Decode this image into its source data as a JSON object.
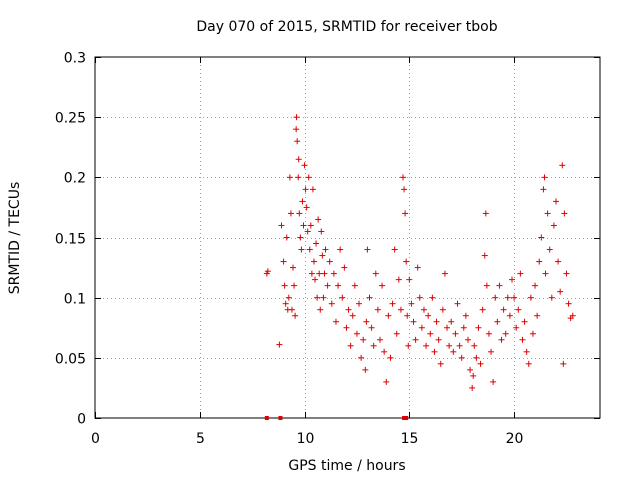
{
  "chart_data": {
    "type": "scatter",
    "title": "Day 070 of 2015, SRMTID for receiver tbob",
    "xlabel": "GPS time / hours",
    "ylabel": "SRMTID / TECUs",
    "xlim": [
      0,
      24.1
    ],
    "ylim": [
      0,
      0.3
    ],
    "x_ticks": [
      0,
      5,
      10,
      15,
      20
    ],
    "x_tick_labels": [
      "0",
      "5",
      "10",
      "15",
      "20"
    ],
    "y_ticks": [
      0,
      0.05,
      0.1,
      0.15,
      0.2,
      0.25,
      0.3
    ],
    "y_tick_labels": [
      "0",
      "0.05",
      "0.1",
      "0.15",
      "0.2",
      "0.25",
      "0.3"
    ],
    "grid": true,
    "marker": "+",
    "color": "#e00000",
    "series": [
      {
        "name": "SRMTID",
        "points": [
          [
            8.2,
            0.0
          ],
          [
            8.85,
            0.0
          ],
          [
            14.75,
            0.0
          ],
          [
            14.85,
            0.0
          ],
          [
            8.2,
            0.12
          ],
          [
            8.25,
            0.122
          ],
          [
            8.8,
            0.061
          ],
          [
            8.9,
            0.16
          ],
          [
            9.0,
            0.13
          ],
          [
            9.05,
            0.11
          ],
          [
            9.1,
            0.095
          ],
          [
            9.15,
            0.15
          ],
          [
            9.2,
            0.09
          ],
          [
            9.25,
            0.1
          ],
          [
            9.3,
            0.2
          ],
          [
            9.35,
            0.17
          ],
          [
            9.4,
            0.09
          ],
          [
            9.45,
            0.125
          ],
          [
            9.5,
            0.11
          ],
          [
            9.55,
            0.085
          ],
          [
            9.6,
            0.24
          ],
          [
            9.62,
            0.25
          ],
          [
            9.65,
            0.23
          ],
          [
            9.7,
            0.2
          ],
          [
            9.72,
            0.215
          ],
          [
            9.75,
            0.17
          ],
          [
            9.8,
            0.15
          ],
          [
            9.85,
            0.14
          ],
          [
            9.9,
            0.18
          ],
          [
            9.95,
            0.16
          ],
          [
            10.0,
            0.21
          ],
          [
            10.05,
            0.19
          ],
          [
            10.1,
            0.175
          ],
          [
            10.15,
            0.155
          ],
          [
            10.2,
            0.2
          ],
          [
            10.25,
            0.14
          ],
          [
            10.3,
            0.16
          ],
          [
            10.35,
            0.12
          ],
          [
            10.4,
            0.19
          ],
          [
            10.45,
            0.13
          ],
          [
            10.5,
            0.115
          ],
          [
            10.55,
            0.145
          ],
          [
            10.6,
            0.1
          ],
          [
            10.65,
            0.165
          ],
          [
            10.7,
            0.12
          ],
          [
            10.75,
            0.09
          ],
          [
            10.8,
            0.155
          ],
          [
            10.85,
            0.135
          ],
          [
            10.9,
            0.1
          ],
          [
            10.95,
            0.12
          ],
          [
            11.0,
            0.14
          ],
          [
            11.1,
            0.11
          ],
          [
            11.2,
            0.13
          ],
          [
            11.3,
            0.095
          ],
          [
            11.4,
            0.12
          ],
          [
            11.5,
            0.08
          ],
          [
            11.6,
            0.11
          ],
          [
            11.7,
            0.14
          ],
          [
            11.8,
            0.1
          ],
          [
            11.9,
            0.125
          ],
          [
            12.0,
            0.075
          ],
          [
            12.1,
            0.09
          ],
          [
            12.2,
            0.06
          ],
          [
            12.3,
            0.085
          ],
          [
            12.4,
            0.11
          ],
          [
            12.5,
            0.07
          ],
          [
            12.6,
            0.095
          ],
          [
            12.7,
            0.05
          ],
          [
            12.8,
            0.065
          ],
          [
            12.9,
            0.04
          ],
          [
            12.95,
            0.08
          ],
          [
            13.0,
            0.14
          ],
          [
            13.1,
            0.1
          ],
          [
            13.2,
            0.075
          ],
          [
            13.3,
            0.06
          ],
          [
            13.4,
            0.12
          ],
          [
            13.5,
            0.09
          ],
          [
            13.6,
            0.065
          ],
          [
            13.7,
            0.11
          ],
          [
            13.8,
            0.055
          ],
          [
            13.9,
            0.03
          ],
          [
            14.0,
            0.085
          ],
          [
            14.1,
            0.05
          ],
          [
            14.2,
            0.095
          ],
          [
            14.3,
            0.14
          ],
          [
            14.4,
            0.07
          ],
          [
            14.5,
            0.115
          ],
          [
            14.6,
            0.09
          ],
          [
            14.7,
            0.2
          ],
          [
            14.75,
            0.19
          ],
          [
            14.8,
            0.17
          ],
          [
            14.85,
            0.13
          ],
          [
            14.9,
            0.085
          ],
          [
            14.95,
            0.06
          ],
          [
            15.0,
            0.115
          ],
          [
            15.1,
            0.095
          ],
          [
            15.2,
            0.08
          ],
          [
            15.3,
            0.065
          ],
          [
            15.4,
            0.125
          ],
          [
            15.5,
            0.1
          ],
          [
            15.6,
            0.075
          ],
          [
            15.7,
            0.09
          ],
          [
            15.8,
            0.06
          ],
          [
            15.9,
            0.085
          ],
          [
            16.0,
            0.07
          ],
          [
            16.1,
            0.1
          ],
          [
            16.2,
            0.055
          ],
          [
            16.3,
            0.08
          ],
          [
            16.4,
            0.065
          ],
          [
            16.5,
            0.045
          ],
          [
            16.6,
            0.09
          ],
          [
            16.7,
            0.12
          ],
          [
            16.8,
            0.075
          ],
          [
            16.9,
            0.06
          ],
          [
            17.0,
            0.08
          ],
          [
            17.1,
            0.055
          ],
          [
            17.2,
            0.07
          ],
          [
            17.3,
            0.095
          ],
          [
            17.4,
            0.06
          ],
          [
            17.5,
            0.05
          ],
          [
            17.6,
            0.075
          ],
          [
            17.7,
            0.085
          ],
          [
            17.8,
            0.065
          ],
          [
            17.9,
            0.04
          ],
          [
            18.0,
            0.025
          ],
          [
            18.05,
            0.035
          ],
          [
            18.1,
            0.06
          ],
          [
            18.2,
            0.05
          ],
          [
            18.3,
            0.075
          ],
          [
            18.4,
            0.045
          ],
          [
            18.5,
            0.09
          ],
          [
            18.6,
            0.135
          ],
          [
            18.65,
            0.17
          ],
          [
            18.7,
            0.11
          ],
          [
            18.8,
            0.07
          ],
          [
            18.9,
            0.055
          ],
          [
            19.0,
            0.03
          ],
          [
            19.1,
            0.1
          ],
          [
            19.2,
            0.08
          ],
          [
            19.3,
            0.11
          ],
          [
            19.4,
            0.065
          ],
          [
            19.5,
            0.09
          ],
          [
            19.6,
            0.07
          ],
          [
            19.7,
            0.1
          ],
          [
            19.8,
            0.085
          ],
          [
            19.9,
            0.115
          ],
          [
            20.0,
            0.1
          ],
          [
            20.1,
            0.075
          ],
          [
            20.2,
            0.09
          ],
          [
            20.3,
            0.12
          ],
          [
            20.4,
            0.065
          ],
          [
            20.5,
            0.08
          ],
          [
            20.6,
            0.055
          ],
          [
            20.7,
            0.045
          ],
          [
            20.8,
            0.1
          ],
          [
            20.9,
            0.07
          ],
          [
            21.0,
            0.11
          ],
          [
            21.1,
            0.085
          ],
          [
            21.2,
            0.13
          ],
          [
            21.3,
            0.15
          ],
          [
            21.4,
            0.19
          ],
          [
            21.45,
            0.2
          ],
          [
            21.5,
            0.12
          ],
          [
            21.6,
            0.17
          ],
          [
            21.7,
            0.14
          ],
          [
            21.8,
            0.1
          ],
          [
            21.9,
            0.16
          ],
          [
            22.0,
            0.18
          ],
          [
            22.1,
            0.13
          ],
          [
            22.2,
            0.105
          ],
          [
            22.3,
            0.21
          ],
          [
            22.35,
            0.045
          ],
          [
            22.4,
            0.17
          ],
          [
            22.5,
            0.12
          ],
          [
            22.6,
            0.095
          ],
          [
            22.7,
            0.083
          ],
          [
            22.8,
            0.085
          ]
        ]
      }
    ]
  }
}
